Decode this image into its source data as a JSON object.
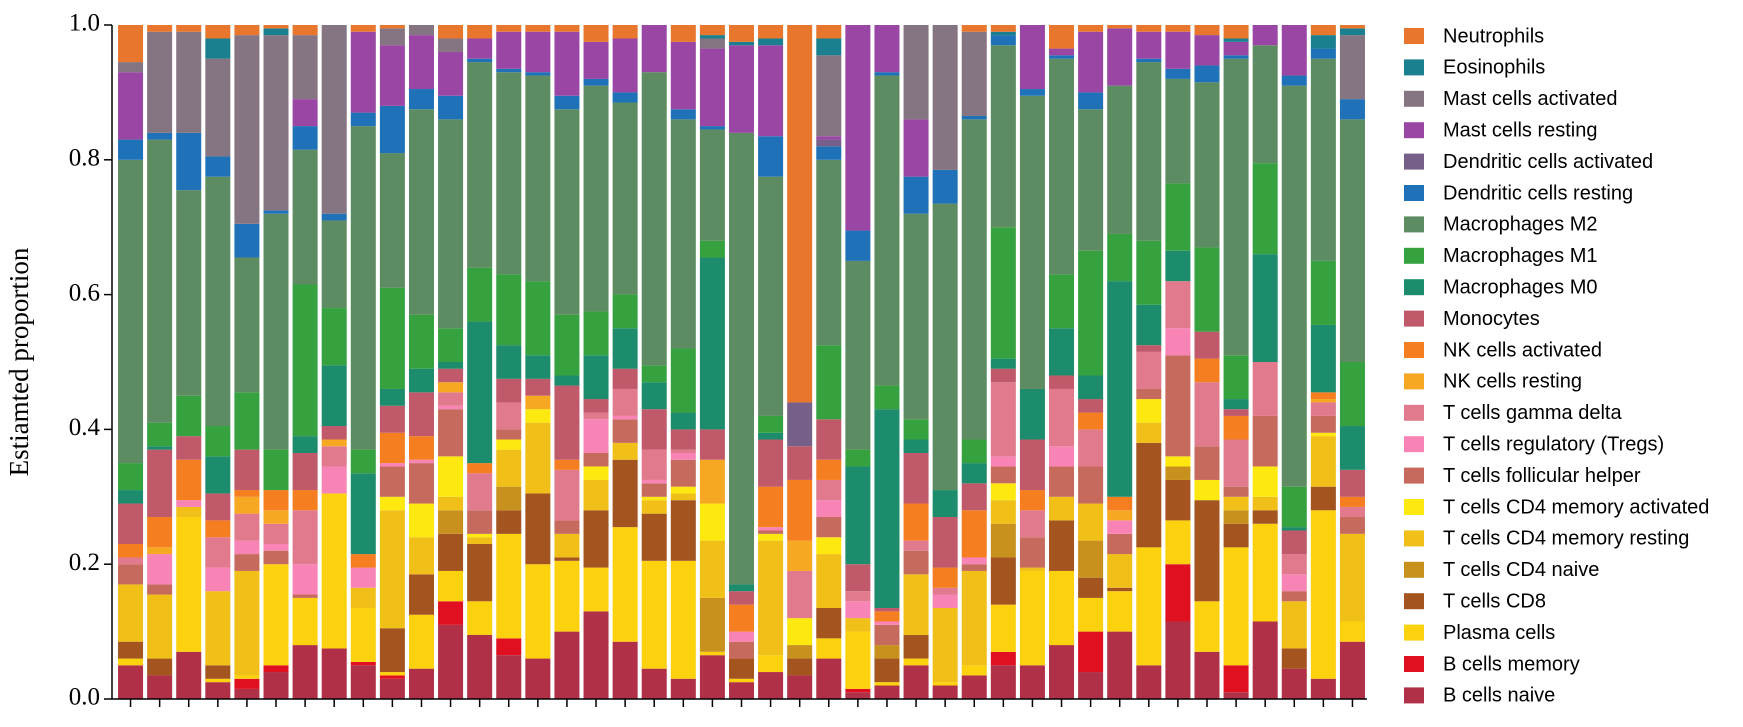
{
  "chart_data": {
    "type": "stacked_bar",
    "y_label": "Estiamted proportion",
    "ylim": [
      0,
      1
    ],
    "yticks": [
      {
        "value": 0,
        "label": "0.0"
      },
      {
        "value": 0.2,
        "label": "0.2"
      },
      {
        "value": 0.4,
        "label": "0.4"
      },
      {
        "value": 0.6,
        "label": "0.6"
      },
      {
        "value": 0.8,
        "label": "0.8"
      },
      {
        "value": 1,
        "label": "1.0"
      }
    ],
    "legend": "right",
    "categories": [
      null,
      null,
      null,
      null,
      null,
      null,
      null,
      null,
      null,
      null,
      null,
      null,
      null,
      null,
      null,
      null,
      null,
      null,
      null,
      null,
      null,
      null,
      null,
      null,
      null,
      null,
      null,
      null,
      null,
      null,
      null,
      null,
      null,
      null,
      null,
      null,
      null,
      null,
      null,
      null,
      null,
      null,
      null
    ],
    "series": [
      {
        "name": "Neutrophils",
        "color": "#e8762c",
        "values": [
          0.055,
          0.01,
          0.01,
          0.02,
          0.015,
          0.005,
          0.015,
          0,
          0.01,
          0.005,
          0,
          0.02,
          0.02,
          0.01,
          0.01,
          0.01,
          0.025,
          0.02,
          0,
          0.025,
          0.015,
          0.025,
          0.02,
          0.56,
          0.02,
          0,
          0,
          0,
          0,
          0.01,
          0.01,
          0,
          0.035,
          0.01,
          0.005,
          0.01,
          0.01,
          0.015,
          0.02,
          0,
          0,
          0.015,
          0.005
        ]
      },
      {
        "name": "Eosinophils",
        "color": "#1a7f8e",
        "values": [
          0,
          0,
          0,
          0.03,
          0,
          0.01,
          0,
          0,
          0,
          0,
          0,
          0,
          0,
          0,
          0,
          0,
          0,
          0,
          0,
          0,
          0.005,
          0.005,
          0.01,
          0,
          0.025,
          0,
          0,
          0,
          0,
          0,
          0.005,
          0,
          0,
          0,
          0,
          0,
          0,
          0,
          0.005,
          0,
          0,
          0.02,
          0.01
        ]
      },
      {
        "name": "Mast cells activated",
        "color": "#857482",
        "values": [
          0.015,
          0.15,
          0.15,
          0.145,
          0.28,
          0.26,
          0.095,
          0.28,
          0,
          0.025,
          0.015,
          0.02,
          0,
          0,
          0,
          0,
          0,
          0,
          0,
          0,
          0.015,
          0,
          0,
          0,
          0.12,
          0,
          0,
          0.14,
          0.215,
          0.125,
          0,
          0,
          0,
          0,
          0,
          0,
          0,
          0,
          0,
          0,
          0,
          0,
          0.095
        ]
      },
      {
        "name": "Mast cells resting",
        "color": "#9a46a4",
        "values": [
          0.1,
          0,
          0,
          0,
          0,
          0,
          0.04,
          0,
          0.12,
          0.09,
          0.08,
          0.065,
          0.03,
          0.055,
          0.06,
          0.095,
          0.055,
          0.08,
          0.07,
          0.1,
          0.115,
          0.13,
          0.135,
          0,
          0.005,
          0.305,
          0.07,
          0.085,
          0,
          0,
          0,
          0.095,
          0.01,
          0.09,
          0.085,
          0.04,
          0.055,
          0.045,
          0.02,
          0.03,
          0.075,
          0,
          0
        ]
      },
      {
        "name": "Dendritic cells activated",
        "color": "#76608a",
        "values": [
          0,
          0,
          0,
          0,
          0,
          0,
          0,
          0,
          0,
          0,
          0,
          0,
          0,
          0,
          0,
          0,
          0,
          0,
          0,
          0,
          0,
          0,
          0,
          0.065,
          0.01,
          0,
          0,
          0,
          0,
          0,
          0,
          0,
          0,
          0,
          0,
          0,
          0,
          0,
          0,
          0,
          0,
          0,
          0
        ]
      },
      {
        "name": "Dendritic cells resting",
        "color": "#1f72b8",
        "values": [
          0.03,
          0.01,
          0.085,
          0.03,
          0.05,
          0.005,
          0.035,
          0.01,
          0.02,
          0.07,
          0.03,
          0.035,
          0.005,
          0.005,
          0.005,
          0.02,
          0.01,
          0.015,
          0,
          0.015,
          0.005,
          0,
          0.06,
          0,
          0.02,
          0.045,
          0.005,
          0.055,
          0.05,
          0.005,
          0.015,
          0.01,
          0.005,
          0.025,
          0,
          0.005,
          0.015,
          0.025,
          0.005,
          0,
          0.015,
          0.015,
          0.03
        ]
      },
      {
        "name": "Macrophages M2",
        "color": "#5e8c62",
        "values": [
          0.45,
          0.42,
          0.305,
          0.37,
          0.2,
          0.35,
          0.2,
          0.13,
          0.48,
          0.2,
          0.305,
          0.31,
          0.305,
          0.3,
          0.305,
          0.305,
          0.335,
          0.285,
          0.435,
          0.34,
          0.165,
          0.67,
          0.355,
          0,
          0.275,
          0.28,
          0.46,
          0.305,
          0.425,
          0.475,
          0.27,
          0.435,
          0.32,
          0.21,
          0.22,
          0.265,
          0.155,
          0.245,
          0.44,
          0.175,
          0.595,
          0.3,
          0.36
        ]
      },
      {
        "name": "Macrophages M1",
        "color": "#35a23f",
        "values": [
          0.04,
          0.035,
          0.06,
          0.045,
          0.085,
          0.06,
          0.225,
          0.085,
          0.035,
          0.15,
          0.08,
          0.05,
          0.08,
          0.105,
          0.11,
          0.09,
          0.065,
          0.05,
          0.025,
          0.095,
          0.025,
          0,
          0.025,
          0,
          0.11,
          0.025,
          0.035,
          0.03,
          0,
          0.035,
          0.195,
          0,
          0.08,
          0.185,
          0.07,
          0.095,
          0.1,
          0.125,
          0.065,
          0.135,
          0.06,
          0.095,
          0.095
        ]
      },
      {
        "name": "Macrophages M0",
        "color": "#1d8c6c",
        "values": [
          0.02,
          0.005,
          0,
          0.055,
          0,
          0,
          0.025,
          0.09,
          0.12,
          0.025,
          0.035,
          0.01,
          0.21,
          0.05,
          0.035,
          0.015,
          0.065,
          0.06,
          0.04,
          0.025,
          0.255,
          0.01,
          0.01,
          0,
          0,
          0.145,
          0.295,
          0.02,
          0.04,
          0.03,
          0.015,
          0.075,
          0.07,
          0.035,
          0.32,
          0.06,
          0.045,
          0,
          0.015,
          0.16,
          0.005,
          0.1,
          0.065
        ]
      },
      {
        "name": "Monocytes",
        "color": "#c05a6a",
        "values": [
          0.06,
          0.1,
          0.035,
          0.04,
          0.06,
          0,
          0.055,
          0.02,
          0,
          0.04,
          0.065,
          0.02,
          0,
          0.035,
          0.025,
          0.11,
          0.02,
          0.03,
          0.06,
          0.03,
          0.045,
          0.02,
          0.07,
          0.05,
          0.06,
          0.04,
          0.005,
          0.075,
          0.075,
          0.04,
          0.02,
          0.075,
          0.02,
          0.02,
          0,
          0.01,
          0,
          0.04,
          0.01,
          0,
          0.035,
          0,
          0.04
        ]
      },
      {
        "name": "NK cells activated",
        "color": "#f57e20",
        "values": [
          0.02,
          0.045,
          0.06,
          0.025,
          0.01,
          0.03,
          0.03,
          0,
          0.02,
          0.045,
          0.035,
          0,
          0.015,
          0,
          0,
          0.015,
          0,
          0,
          0,
          0,
          0,
          0.04,
          0.06,
          0.09,
          0.03,
          0,
          0.015,
          0.055,
          0.03,
          0.07,
          0,
          0.03,
          0,
          0.025,
          0.02,
          0,
          0,
          0.035,
          0.035,
          0,
          0,
          0.01,
          0.015
        ]
      },
      {
        "name": "NK cells resting",
        "color": "#f7a823",
        "values": [
          0,
          0.01,
          0,
          0,
          0.025,
          0.02,
          0,
          0.01,
          0,
          0,
          0,
          0.015,
          0,
          0,
          0.02,
          0,
          0,
          0,
          0,
          0,
          0.065,
          0,
          0,
          0.045,
          0,
          0,
          0,
          0,
          0,
          0,
          0,
          0,
          0,
          0,
          0.015,
          0,
          0,
          0,
          0,
          0,
          0,
          0.005,
          0
        ]
      },
      {
        "name": "T cells gamma delta",
        "color": "#e07a8c",
        "values": [
          0.01,
          0,
          0,
          0.045,
          0.04,
          0.03,
          0.08,
          0.03,
          0,
          0,
          0,
          0.02,
          0.055,
          0.04,
          0,
          0.075,
          0.01,
          0.04,
          0.045,
          0.005,
          0,
          0,
          0,
          0.07,
          0.03,
          0.015,
          0,
          0.015,
          0.01,
          0,
          0.11,
          0.04,
          0.085,
          0.055,
          0,
          0.055,
          0.07,
          0.095,
          0.07,
          0.08,
          0.03,
          0.02,
          0.015
        ]
      },
      {
        "name": "T cells regulatory (Tregs)",
        "color": "#f883b5",
        "values": [
          0,
          0.045,
          0.01,
          0.035,
          0.02,
          0.01,
          0.045,
          0.04,
          0.03,
          0.005,
          0.005,
          0.005,
          0,
          0,
          0,
          0,
          0.05,
          0.005,
          0.005,
          0.01,
          0,
          0.015,
          0.005,
          0,
          0.025,
          0.025,
          0.005,
          0,
          0.02,
          0.01,
          0.015,
          0,
          0.03,
          0,
          0.02,
          0,
          0.04,
          0,
          0,
          0,
          0.025,
          0,
          0
        ]
      },
      {
        "name": "T cells follicular helper",
        "color": "#c76a5e",
        "values": [
          0.03,
          0.015,
          0,
          0,
          0.025,
          0.02,
          0.005,
          0,
          0,
          0.045,
          0.06,
          0.07,
          0.035,
          0.015,
          0,
          0.02,
          0.02,
          0.035,
          0.02,
          0.04,
          0,
          0.025,
          0.005,
          0,
          0.03,
          0,
          0.03,
          0.035,
          0,
          0.01,
          0.025,
          0.045,
          0.045,
          0.055,
          0.03,
          0.015,
          0.15,
          0.05,
          0.015,
          0.075,
          0.015,
          0.025,
          0.025
        ]
      },
      {
        "name": "T cells CD4 memory activated",
        "color": "#fde910",
        "values": [
          0,
          0,
          0,
          0,
          0,
          0,
          0,
          0,
          0,
          0.02,
          0.05,
          0.06,
          0.005,
          0.015,
          0.02,
          0,
          0.02,
          0,
          0.005,
          0.01,
          0.055,
          0,
          0.01,
          0.04,
          0.025,
          0,
          0,
          0,
          0,
          0,
          0.025,
          0,
          0,
          0,
          0,
          0.035,
          0.015,
          0.03,
          0,
          0.045,
          0,
          0.005,
          0
        ]
      },
      {
        "name": "T cells CD4 memory resting",
        "color": "#f0bf18",
        "values": [
          0.085,
          0.095,
          0.015,
          0.11,
          0.155,
          0,
          0,
          0,
          0.03,
          0.175,
          0.055,
          0.02,
          0.01,
          0.055,
          0.105,
          0.035,
          0.045,
          0.025,
          0.02,
          0.01,
          0.085,
          0,
          0.17,
          0,
          0.08,
          0.02,
          0,
          0.09,
          0.11,
          0.14,
          0.035,
          0.005,
          0.035,
          0.055,
          0.05,
          0.03,
          0,
          0,
          0.02,
          0.02,
          0.07,
          0.075,
          0.13
        ]
      },
      {
        "name": "T cells CD4 naive",
        "color": "#c8901c",
        "values": [
          0,
          0,
          0,
          0,
          0,
          0,
          0,
          0,
          0,
          0,
          0,
          0.035,
          0,
          0.035,
          0,
          0,
          0,
          0,
          0,
          0,
          0.08,
          0,
          0,
          0.02,
          0,
          0,
          0.02,
          0,
          0,
          0,
          0.05,
          0,
          0,
          0.055,
          0,
          0,
          0.02,
          0,
          0.02,
          0,
          0,
          0,
          0
        ]
      },
      {
        "name": "T cells CD8",
        "color": "#a3541f",
        "values": [
          0.025,
          0.025,
          0,
          0.02,
          0,
          0,
          0,
          0,
          0,
          0.065,
          0.06,
          0.055,
          0.085,
          0.035,
          0.105,
          0.005,
          0.085,
          0.1,
          0.07,
          0.09,
          0,
          0.03,
          0,
          0.025,
          0.045,
          0,
          0.035,
          0.035,
          0,
          0,
          0.07,
          0,
          0.075,
          0.03,
          0.005,
          0.155,
          0.06,
          0.15,
          0.035,
          0.02,
          0.03,
          0.035,
          0
        ]
      },
      {
        "name": "Plasma cells",
        "color": "#fcd10e",
        "values": [
          0.01,
          0,
          0.2,
          0.005,
          0.005,
          0.15,
          0.07,
          0.23,
          0.08,
          0.005,
          0.08,
          0.045,
          0.05,
          0.155,
          0.14,
          0.105,
          0.065,
          0.17,
          0.16,
          0.175,
          0.005,
          0.005,
          0.025,
          0,
          0.03,
          0.085,
          0.005,
          0.01,
          0.005,
          0.015,
          0.07,
          0.14,
          0.11,
          0.05,
          0.06,
          0.175,
          0.065,
          0.075,
          0.175,
          0.145,
          0,
          0.25,
          0.03
        ]
      },
      {
        "name": "B cells memory",
        "color": "#e01020",
        "values": [
          0,
          0,
          0,
          0,
          0.015,
          0.01,
          0,
          0,
          0.005,
          0.005,
          0,
          0.035,
          0,
          0.025,
          0,
          0,
          0,
          0,
          0,
          0,
          0,
          0,
          0,
          0,
          0,
          0.005,
          0,
          0,
          0,
          0,
          0.02,
          0,
          0,
          0.06,
          0,
          0,
          0.085,
          0,
          0.04,
          0,
          0,
          0,
          0
        ]
      },
      {
        "name": "B cells naive",
        "color": "#b03048",
        "values": [
          0.05,
          0.035,
          0.07,
          0.025,
          0.015,
          0.04,
          0.08,
          0.075,
          0.05,
          0.03,
          0.045,
          0.11,
          0.095,
          0.065,
          0.06,
          0.1,
          0.13,
          0.085,
          0.045,
          0.03,
          0.065,
          0.025,
          0.04,
          0.035,
          0.06,
          0.01,
          0.02,
          0.05,
          0.02,
          0.035,
          0.05,
          0.05,
          0.08,
          0.04,
          0.1,
          0.05,
          0.115,
          0.07,
          0.01,
          0.115,
          0.045,
          0.03,
          0.085
        ]
      }
    ]
  }
}
